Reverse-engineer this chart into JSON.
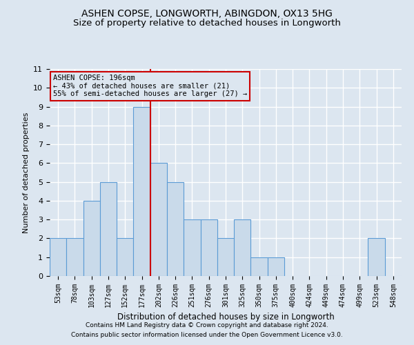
{
  "title1": "ASHEN COPSE, LONGWORTH, ABINGDON, OX13 5HG",
  "title2": "Size of property relative to detached houses in Longworth",
  "xlabel": "Distribution of detached houses by size in Longworth",
  "ylabel": "Number of detached properties",
  "categories": [
    "53sqm",
    "78sqm",
    "103sqm",
    "127sqm",
    "152sqm",
    "177sqm",
    "202sqm",
    "226sqm",
    "251sqm",
    "276sqm",
    "301sqm",
    "325sqm",
    "350sqm",
    "375sqm",
    "400sqm",
    "424sqm",
    "449sqm",
    "474sqm",
    "499sqm",
    "523sqm",
    "548sqm"
  ],
  "values": [
    2,
    2,
    4,
    5,
    2,
    9,
    6,
    5,
    3,
    3,
    2,
    3,
    1,
    1,
    0,
    0,
    0,
    0,
    0,
    2,
    0
  ],
  "bar_color": "#c9daea",
  "bar_edge_color": "#5b9bd5",
  "vline_x": 5.5,
  "vline_color": "#cc0000",
  "ylim": [
    0,
    11
  ],
  "yticks": [
    0,
    1,
    2,
    3,
    4,
    5,
    6,
    7,
    8,
    9,
    10,
    11
  ],
  "annotation_title": "ASHEN COPSE: 196sqm",
  "annotation_line1": "← 43% of detached houses are smaller (21)",
  "annotation_line2": "55% of semi-detached houses are larger (27) →",
  "annotation_box_color": "#cc0000",
  "footer1": "Contains HM Land Registry data © Crown copyright and database right 2024.",
  "footer2": "Contains public sector information licensed under the Open Government Licence v3.0.",
  "bg_color": "#dce6f0",
  "grid_color": "#ffffff",
  "title1_fontsize": 10,
  "title2_fontsize": 9.5
}
